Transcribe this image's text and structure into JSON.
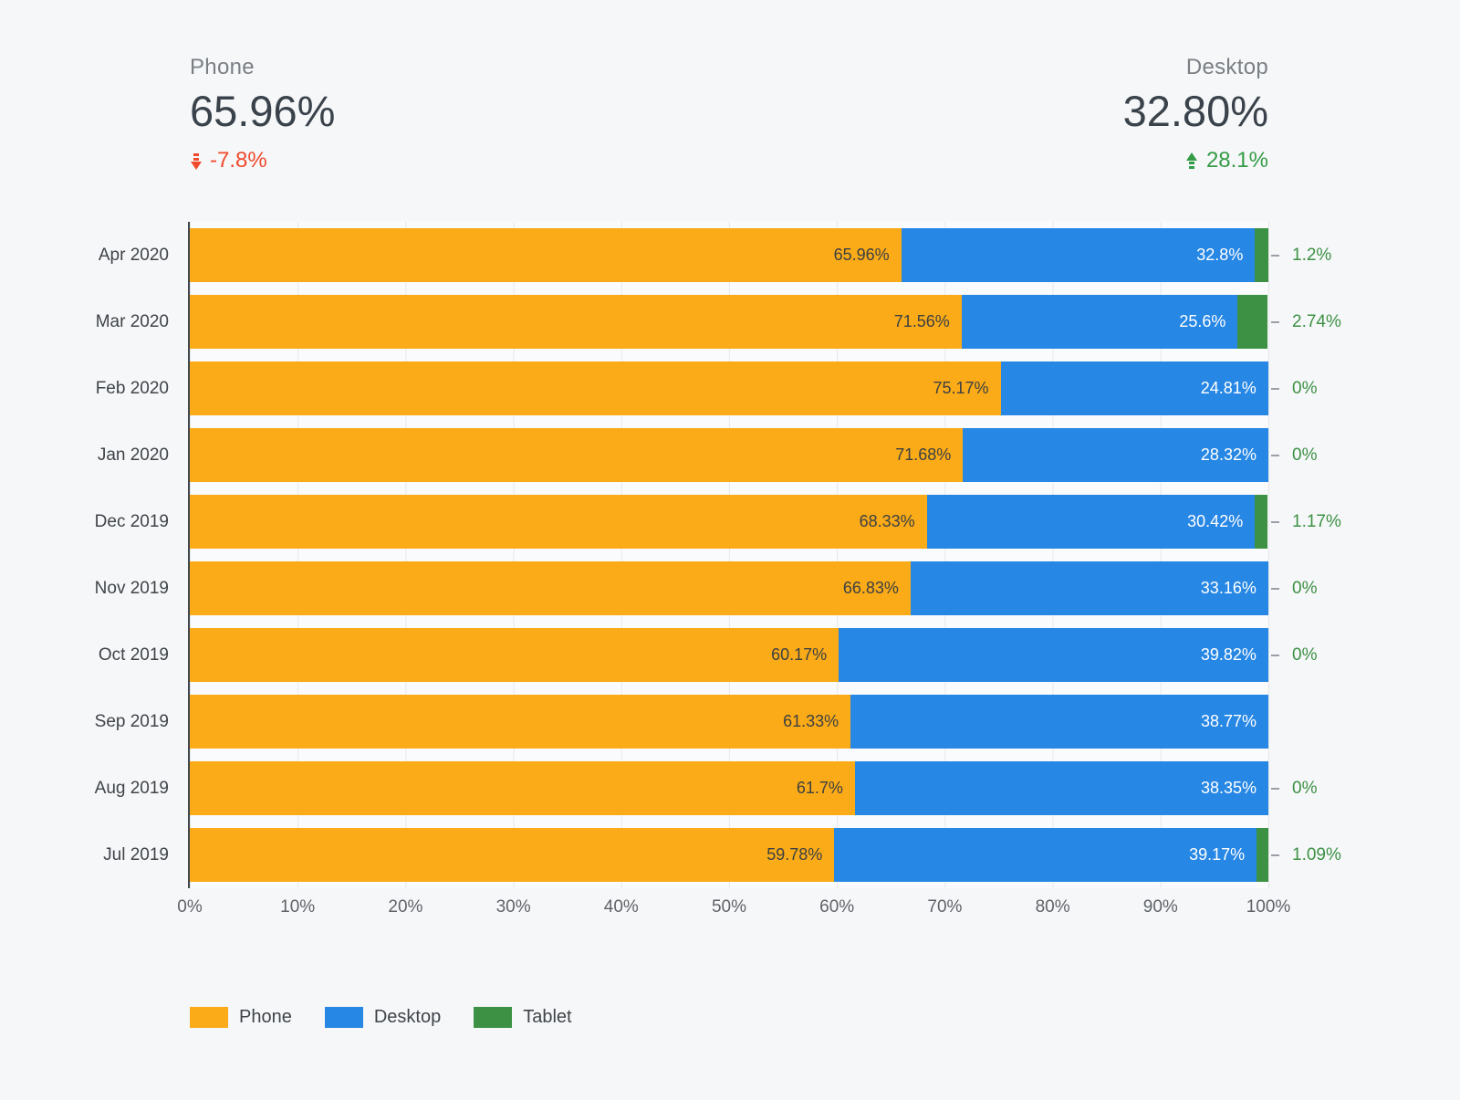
{
  "summary": {
    "phone": {
      "label": "Phone",
      "value": "65.96%",
      "delta": "-7.8%",
      "direction": "down",
      "delta_color": "#F04A2B"
    },
    "desktop": {
      "label": "Desktop",
      "value": "32.80%",
      "delta": "28.1%",
      "direction": "up",
      "delta_color": "#349C46"
    }
  },
  "chart_data": {
    "type": "bar",
    "orientation": "horizontal",
    "stacked": true,
    "x_axis": {
      "range": [
        0,
        100
      ],
      "ticks": [
        "0%",
        "10%",
        "20%",
        "30%",
        "40%",
        "50%",
        "60%",
        "70%",
        "80%",
        "90%",
        "100%"
      ],
      "grid": true
    },
    "categories": [
      "Apr 2020",
      "Mar 2020",
      "Feb 2020",
      "Jan 2020",
      "Dec 2019",
      "Nov 2019",
      "Oct 2019",
      "Sep 2019",
      "Aug 2019",
      "Jul 2019"
    ],
    "series": [
      {
        "name": "Phone",
        "color": "#FBAB17",
        "values": [
          65.96,
          71.56,
          75.17,
          71.68,
          68.33,
          66.83,
          60.17,
          61.33,
          61.7,
          59.78
        ]
      },
      {
        "name": "Desktop",
        "color": "#2787E4",
        "values": [
          32.8,
          25.6,
          24.81,
          28.32,
          30.42,
          33.16,
          39.82,
          38.77,
          38.35,
          39.17
        ]
      },
      {
        "name": "Tablet",
        "color": "#3D9144",
        "values": [
          1.2,
          2.74,
          0,
          0,
          1.17,
          0,
          0,
          null,
          0,
          1.09
        ]
      }
    ],
    "bar_labels": [
      {
        "phone": "65.96%",
        "desktop": "32.8%",
        "tablet": "1.2%"
      },
      {
        "phone": "71.56%",
        "desktop": "25.6%",
        "tablet": "2.74%"
      },
      {
        "phone": "75.17%",
        "desktop": "24.81%",
        "tablet": "0%"
      },
      {
        "phone": "71.68%",
        "desktop": "28.32%",
        "tablet": "0%"
      },
      {
        "phone": "68.33%",
        "desktop": "30.42%",
        "tablet": "1.17%"
      },
      {
        "phone": "66.83%",
        "desktop": "33.16%",
        "tablet": "0%"
      },
      {
        "phone": "60.17%",
        "desktop": "39.82%",
        "tablet": "0%"
      },
      {
        "phone": "61.33%",
        "desktop": "38.77%",
        "tablet": null
      },
      {
        "phone": "61.7%",
        "desktop": "38.35%",
        "tablet": "0%"
      },
      {
        "phone": "59.78%",
        "desktop": "39.17%",
        "tablet": "1.09%"
      }
    ],
    "annotation_color": "#3D9144",
    "legend": {
      "position": "bottom",
      "items": [
        {
          "label": "Phone",
          "color": "#FBAB17"
        },
        {
          "label": "Desktop",
          "color": "#2787E4"
        },
        {
          "label": "Tablet",
          "color": "#3D9144"
        }
      ]
    }
  }
}
